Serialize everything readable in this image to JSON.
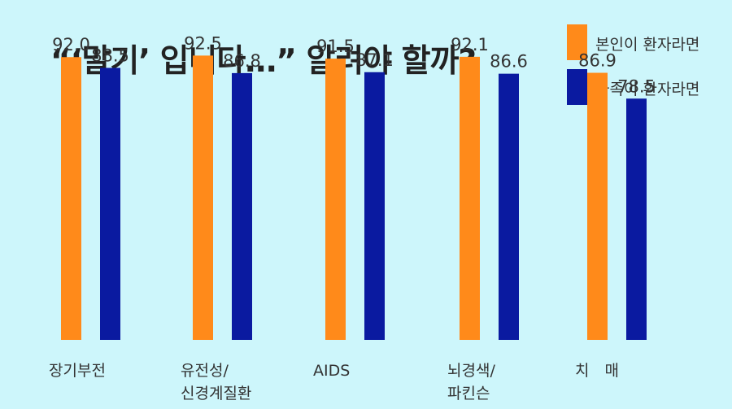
{
  "title": "“‘말기’ 입니다…” 알려야 할까?",
  "legend": [
    {
      "label": "본인이 환자라면",
      "color": "#ff8a1a"
    },
    {
      "label": "가족이 환자라면",
      "color": "#0a1aa0"
    }
  ],
  "chart_data": {
    "type": "bar",
    "title": "“‘말기’ 입니다…” 알려야 할까?",
    "categories": [
      [
        "장기부전"
      ],
      [
        "유전성/",
        "신경계질환"
      ],
      [
        "AIDS"
      ],
      [
        "뇌경색/",
        "파킨슨"
      ],
      [
        "치　매"
      ]
    ],
    "series": [
      {
        "name": "본인이 환자라면",
        "color": "#ff8a1a",
        "values": [
          92.0,
          92.5,
          91.5,
          92.1,
          86.9
        ]
      },
      {
        "name": "가족이 환자라면",
        "color": "#0a1aa0",
        "values": [
          88.5,
          86.8,
          87.1,
          86.6,
          78.5
        ]
      }
    ],
    "ylim": [
      0,
      100
    ],
    "grid": false,
    "legend_position": "top-right",
    "value_labels": true
  }
}
